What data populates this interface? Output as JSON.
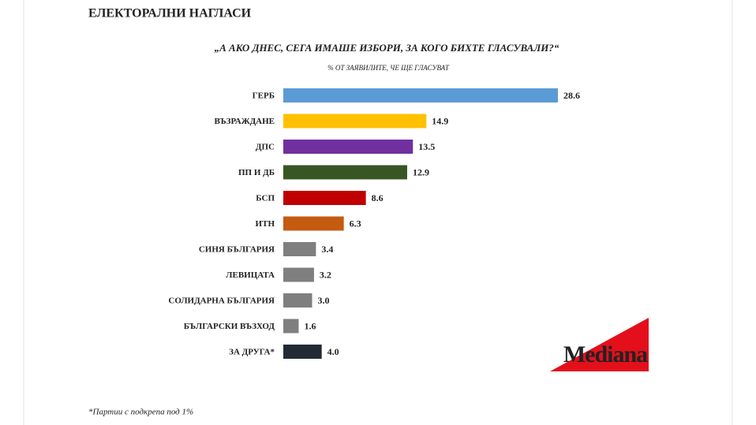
{
  "chart_data": {
    "type": "hbar",
    "title": "ЕЛЕКТОРАЛНИ НАГЛАСИ",
    "subtitle": "„А АКО ДНЕС, СЕГА ИМАШЕ ИЗБОРИ, ЗА КОГО БИХТЕ ГЛАСУВАЛИ?“",
    "axis_note": "% ОТ ЗАЯВИЛИТЕ, ЧЕ ЩЕ ГЛАСУВАТ",
    "footnote": "*Партии с подкрепа под 1%",
    "logo": "Mediana",
    "categories": [
      "ГЕРБ",
      "ВЪЗРАЖДАНЕ",
      "ДПС",
      "ПП И ДБ",
      "БСП",
      "ИТН",
      "СИНЯ БЪЛГАРИЯ",
      "ЛЕВИЦАТА",
      "СОЛИДАРНА БЪЛГАРИЯ",
      "БЪЛГАРСКИ ВЪЗХОД",
      "ЗА ДРУГА*"
    ],
    "values": [
      28.6,
      14.9,
      13.5,
      12.9,
      8.6,
      6.3,
      3.4,
      3.2,
      3.0,
      1.6,
      4.0
    ],
    "value_labels": [
      "28.6",
      "14.9",
      "13.5",
      "12.9",
      "8.6",
      "6.3",
      "3.4",
      "3.2",
      "3.0",
      "1.6",
      "4.0"
    ],
    "colors": [
      "#5b9bd5",
      "#ffc000",
      "#7030a0",
      "#375623",
      "#c00000",
      "#c55a11",
      "#7f7f7f",
      "#7f7f7f",
      "#7f7f7f",
      "#7f7f7f",
      "#222a35"
    ],
    "xlim": [
      0,
      36
    ]
  }
}
